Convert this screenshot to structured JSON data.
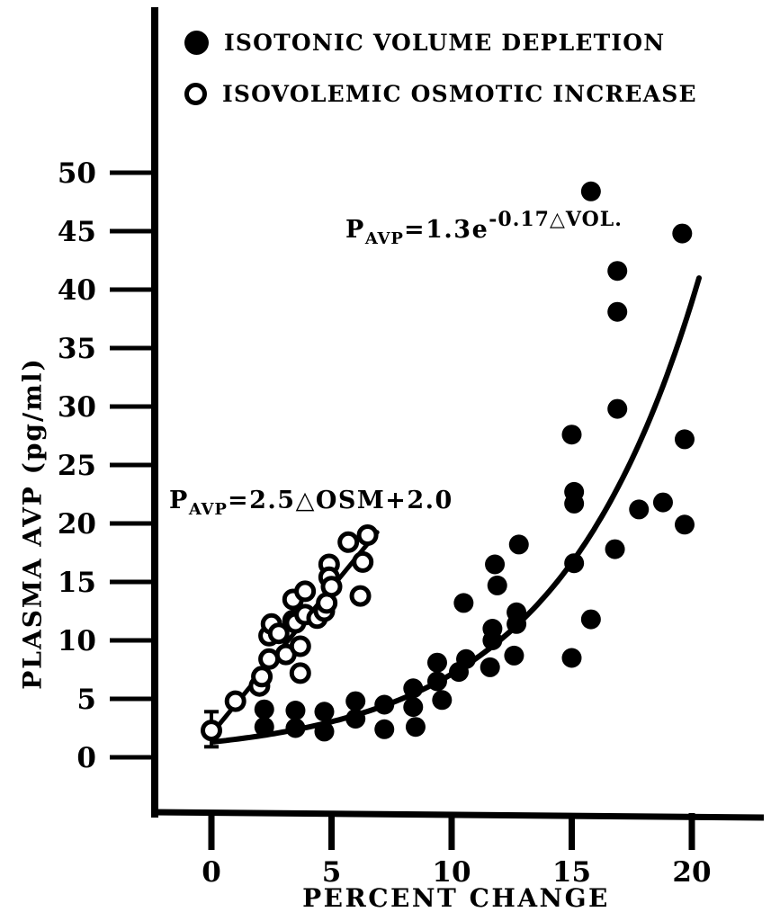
{
  "colors": {
    "ink": "#000000",
    "background": "#ffffff"
  },
  "legend": {
    "items": [
      {
        "marker": "filled-circle",
        "label": "ISOTONIC VOLUME DEPLETION"
      },
      {
        "marker": "open-circle",
        "label": "ISOVOLEMIC OSMOTIC INCREASE"
      }
    ]
  },
  "equations": {
    "volume": {
      "p": "P",
      "sub": "AVP",
      "mid": "=1.3e",
      "sup": "-0.17△VOL."
    },
    "osmotic": {
      "p": "P",
      "sub": "AVP",
      "rest": "=2.5△OSM+2.0"
    }
  },
  "chart_data": {
    "type": "scatter",
    "title": "",
    "xlabel": "PERCENT CHANGE",
    "ylabel": "PLASMA AVP (pg/ml)",
    "xlim": [
      0,
      20
    ],
    "ylim": [
      0,
      50
    ],
    "xticks": [
      0,
      5,
      10,
      15,
      20
    ],
    "yticks": [
      0,
      5,
      10,
      15,
      20,
      25,
      30,
      35,
      40,
      45,
      50
    ],
    "grid": false,
    "legend_position": "top-left-inside",
    "series": [
      {
        "name": "ISOTONIC VOLUME DEPLETION",
        "marker": "filled-circle",
        "points": [
          [
            2.2,
            4.1
          ],
          [
            2.2,
            2.6
          ],
          [
            3.5,
            4.0
          ],
          [
            3.5,
            2.5
          ],
          [
            4.7,
            3.9
          ],
          [
            4.7,
            2.2
          ],
          [
            6.0,
            4.8
          ],
          [
            6.0,
            3.3
          ],
          [
            7.2,
            4.5
          ],
          [
            7.2,
            2.4
          ],
          [
            8.4,
            5.9
          ],
          [
            8.4,
            4.3
          ],
          [
            8.5,
            2.6
          ],
          [
            9.4,
            8.1
          ],
          [
            9.4,
            6.5
          ],
          [
            9.6,
            4.9
          ],
          [
            10.3,
            7.3
          ],
          [
            10.6,
            8.4
          ],
          [
            10.5,
            13.2
          ],
          [
            11.6,
            7.7
          ],
          [
            11.7,
            10.0
          ],
          [
            11.7,
            11.0
          ],
          [
            11.8,
            16.5
          ],
          [
            11.9,
            14.7
          ],
          [
            12.6,
            8.7
          ],
          [
            12.7,
            11.4
          ],
          [
            12.7,
            12.4
          ],
          [
            12.8,
            18.2
          ],
          [
            15.0,
            8.5
          ],
          [
            15.1,
            16.6
          ],
          [
            15.1,
            21.7
          ],
          [
            15.1,
            22.7
          ],
          [
            15.0,
            27.6
          ],
          [
            15.8,
            11.8
          ],
          [
            15.8,
            48.4
          ],
          [
            16.8,
            17.8
          ],
          [
            16.9,
            29.8
          ],
          [
            16.9,
            38.1
          ],
          [
            16.9,
            41.6
          ],
          [
            17.8,
            21.2
          ],
          [
            18.8,
            21.8
          ],
          [
            19.6,
            44.8
          ],
          [
            19.7,
            27.2
          ],
          [
            19.7,
            19.9
          ]
        ]
      },
      {
        "name": "ISOVOLEMIC OSMOTIC INCREASE",
        "marker": "open-circle",
        "points": [
          [
            0.0,
            2.3
          ],
          [
            1.0,
            4.8
          ],
          [
            2.0,
            6.1
          ],
          [
            2.1,
            6.9
          ],
          [
            2.4,
            8.4
          ],
          [
            2.4,
            10.4
          ],
          [
            2.5,
            11.4
          ],
          [
            2.8,
            10.6
          ],
          [
            3.1,
            8.8
          ],
          [
            3.4,
            11.7
          ],
          [
            3.4,
            13.5
          ],
          [
            3.5,
            11.5
          ],
          [
            3.7,
            9.5
          ],
          [
            3.7,
            7.2
          ],
          [
            3.9,
            14.2
          ],
          [
            3.9,
            12.2
          ],
          [
            4.4,
            11.9
          ],
          [
            4.7,
            12.5
          ],
          [
            4.8,
            13.2
          ],
          [
            4.9,
            16.5
          ],
          [
            4.9,
            15.4
          ],
          [
            5.0,
            14.6
          ],
          [
            5.7,
            18.4
          ],
          [
            6.2,
            13.8
          ],
          [
            6.3,
            16.7
          ],
          [
            6.5,
            19.0
          ]
        ],
        "error_bar": {
          "x": 0,
          "y": 2.3,
          "y_low": 0.9,
          "y_high": 3.9
        }
      }
    ],
    "fits": [
      {
        "series": "ISOTONIC VOLUME DEPLETION",
        "type": "exponential",
        "equation": "PAVP = 1.3e^(-0.17 ΔVOL)",
        "coef": 1.3,
        "rate": 0.17,
        "x_range": [
          0.1,
          20.3
        ]
      },
      {
        "series": "ISOVOLEMIC OSMOTIC INCREASE",
        "type": "linear",
        "equation": "PAVP = 2.5 ΔOSM + 2.0",
        "slope": 2.5,
        "intercept": 2.0,
        "x_range": [
          -0.05,
          6.9
        ]
      }
    ]
  }
}
